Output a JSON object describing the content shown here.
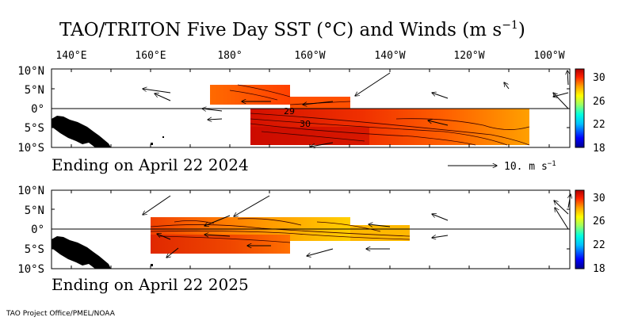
{
  "title": {
    "main": "TAO/TRITON Five Day SST (°C) and Winds (m s",
    "superscript": "−1",
    "close": ")"
  },
  "longitude_labels": [
    "140°E",
    "160°E",
    "180°",
    "160°W",
    "140°W",
    "120°W",
    "100°W"
  ],
  "latitude_labels": [
    "10°N",
    "5°N",
    "0°",
    "5°S",
    "10°S"
  ],
  "colorbar": {
    "ticks": [
      "30",
      "26",
      "22",
      "18"
    ],
    "colors": [
      "#0000a0",
      "#0000ff",
      "#00aaff",
      "#00ffff",
      "#80ffa0",
      "#ffff00",
      "#ffaa00",
      "#ff5500",
      "#ff0000",
      "#a00000"
    ]
  },
  "panels": [
    {
      "id": "2024",
      "ending_label": "Ending on April 22 2024",
      "contour_labels": [
        "29",
        "30"
      ],
      "reference_vector": "10.  m s",
      "reference_superscript": "−1"
    },
    {
      "id": "2025",
      "ending_label": "Ending on April 22 2025"
    }
  ],
  "credit": "TAO Project Office/PMEL/NOAA"
}
